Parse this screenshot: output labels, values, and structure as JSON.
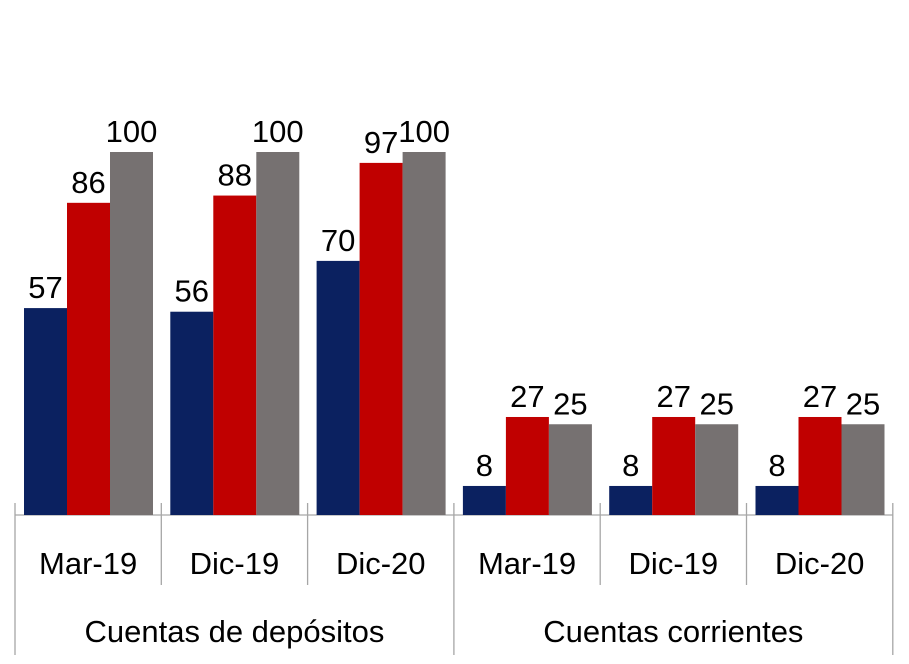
{
  "chart_data": {
    "type": "bar",
    "groups": [
      {
        "label": "Cuentas de depósitos",
        "categories": [
          "Mar-19",
          "Dic-19",
          "Dic-20"
        ],
        "series_values": [
          [
            57,
            86,
            100
          ],
          [
            56,
            88,
            100
          ],
          [
            70,
            97,
            100
          ]
        ]
      },
      {
        "label": "Cuentas corrientes",
        "categories": [
          "Mar-19",
          "Dic-19",
          "Dic-20"
        ],
        "series_values": [
          [
            8,
            27,
            25
          ],
          [
            8,
            27,
            25
          ],
          [
            8,
            27,
            25
          ]
        ]
      }
    ],
    "series_colors": [
      "#0b2160",
      "#c00000",
      "#767171"
    ],
    "ylim": [
      0,
      100
    ],
    "grid": false,
    "legend": "none",
    "data_labels": true
  }
}
